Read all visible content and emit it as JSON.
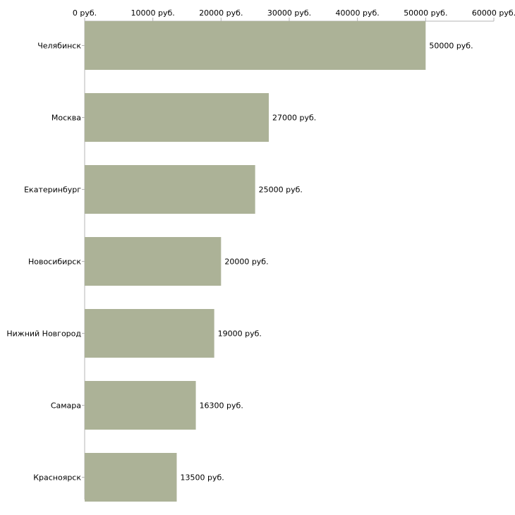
{
  "chart_data": {
    "type": "bar",
    "orientation": "horizontal",
    "title": "",
    "xlabel": "",
    "ylabel": "",
    "categories": [
      "Челябинск",
      "Москва",
      "Екатеринбург",
      "Новосибирск",
      "Нижний Новгород",
      "Самара",
      "Красноярск"
    ],
    "values": [
      50000,
      27000,
      25000,
      20000,
      19000,
      16300,
      13500
    ],
    "value_labels": [
      "50000 руб.",
      "27000 руб.",
      "25000 руб.",
      "20000 руб.",
      "19000 руб.",
      "16300 руб.",
      "13500 руб."
    ],
    "xlim": [
      0,
      60000
    ],
    "x_ticks": [
      0,
      10000,
      20000,
      30000,
      40000,
      50000,
      60000
    ],
    "x_tick_labels": [
      "0 руб.",
      "10000 руб.",
      "20000 руб.",
      "30000 руб.",
      "40000 руб.",
      "50000 руб.",
      "60000 руб."
    ],
    "axis_position": "top",
    "grid": false,
    "legend": "none",
    "colors": {
      "bar": "#acb297",
      "axis": "#b4b4b4",
      "text": "#000000"
    }
  }
}
